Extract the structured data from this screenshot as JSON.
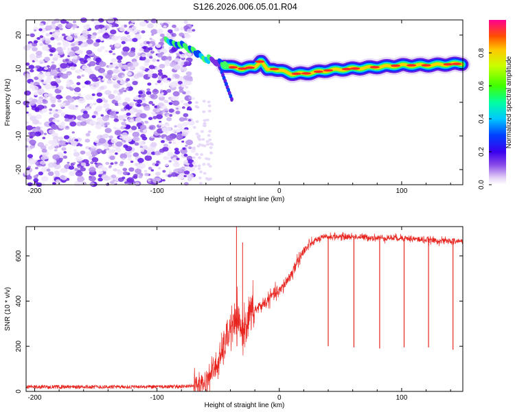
{
  "title": "S126.2026.006.05.01.R04",
  "chart_data": [
    {
      "type": "heatmap",
      "title": "S126.2026.006.05.01.R04",
      "xlabel": "Height of straight line (km)",
      "ylabel": "Frequency (Hz)",
      "xlim": [
        -207,
        150
      ],
      "ylim": [
        -24.5,
        24.5
      ],
      "xticks": [
        -200,
        -100,
        0,
        100
      ],
      "yticks": [
        -20,
        -10,
        0,
        10,
        20
      ],
      "colorbar": {
        "label": "Normalized spectral amplitude",
        "range": [
          0,
          1
        ],
        "ticks": [
          0.0,
          0.2,
          0.4,
          0.6,
          0.8
        ]
      },
      "ridge": {
        "x": [
          -90,
          -80,
          -70,
          -60,
          -50,
          -45,
          -40,
          -30,
          -20,
          -15,
          -10,
          -5,
          0,
          10,
          20,
          40,
          60,
          80,
          100,
          120,
          150
        ],
        "frequency": [
          18,
          17,
          15,
          13,
          12,
          11,
          10.5,
          10,
          10.5,
          12.5,
          9.5,
          10,
          9.5,
          8.5,
          8.5,
          9.5,
          10,
          10.5,
          11,
          11,
          11.5
        ]
      },
      "noise_region_x": [
        -207,
        -70
      ]
    },
    {
      "type": "line",
      "xlabel": "Height of straight line (km)",
      "ylabel": "SNR (10 * v/v)",
      "xlim": [
        -207,
        150
      ],
      "ylim": [
        0,
        730
      ],
      "xticks": [
        -200,
        -100,
        0,
        100
      ],
      "yticks": [
        0,
        200,
        400,
        600
      ],
      "series": [
        {
          "name": "SNR",
          "color": "#e8241f",
          "x": [
            -207,
            -150,
            -100,
            -80,
            -70,
            -60,
            -55,
            -50,
            -45,
            -40,
            -35,
            -30,
            -25,
            -20,
            -15,
            -10,
            -5,
            0,
            5,
            10,
            15,
            20,
            25,
            30,
            35,
            40,
            50,
            60,
            80,
            100,
            120,
            140,
            150
          ],
          "value": [
            20,
            20,
            20,
            22,
            25,
            40,
            90,
            120,
            200,
            280,
            300,
            270,
            330,
            360,
            380,
            400,
            430,
            440,
            480,
            520,
            580,
            620,
            650,
            670,
            680,
            685,
            685,
            685,
            680,
            680,
            670,
            665,
            665
          ],
          "dips": [
            {
              "x": 40,
              "value": 200
            },
            {
              "x": 61,
              "value": 195
            },
            {
              "x": 82,
              "value": 190
            },
            {
              "x": 102,
              "value": 195
            },
            {
              "x": 122,
              "value": 195
            },
            {
              "x": 142,
              "value": 185
            }
          ],
          "spikes": [
            {
              "x": -35,
              "value": 730
            },
            {
              "x": -30,
              "value": 660
            }
          ]
        }
      ]
    }
  ]
}
